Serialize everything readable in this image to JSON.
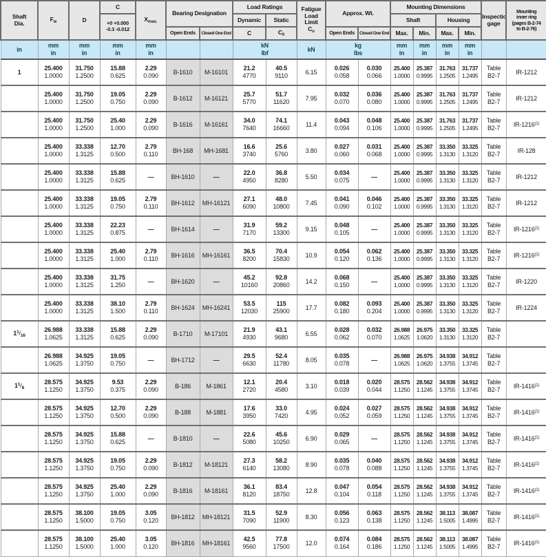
{
  "header": {
    "shaft_dia": "Shaft\nDia.",
    "f": "F",
    "f_sub": "w",
    "d": "D",
    "c": "C",
    "c_tolerance": "+0 +0.000\n-0.3 -0.012",
    "x": "X",
    "x_sub": "max.",
    "bearing_designation": "Bearing Designation",
    "open_ends": "Open Ends",
    "closed_one_end": "Closed One End",
    "load_ratings": "Load Ratings",
    "dynamic": "Dynamic",
    "static": "Static",
    "c_dynamic": "C",
    "c_static": "C",
    "c_static_sub": "0",
    "fatigue": "Fatigue\nLoad\nLimit",
    "fatigue_c": "C",
    "fatigue_c_sub": "u",
    "approx_wt": "Approx. Wt.",
    "mounting_dimensions": "Mounting Dimensions",
    "shaft": "Shaft",
    "housing": "Housing",
    "max": "Max.",
    "min": "Min.",
    "inspection_gage": "Inspection\ngage",
    "mounting_inner_ring": "Mounting\ninner ring\n(pages B-2-74\nto B-2-76)"
  },
  "units": {
    "shaft": "in",
    "metric": "mm\nin",
    "load": "kN\nlbf",
    "fatigue": "kN",
    "weight": "kg\nlbs"
  },
  "colors": {
    "header_bg": "#e7e7e7",
    "units_bg": "#c9e8f7",
    "designation_bg": "#dcdcdc",
    "row_separator": "#707070",
    "grid_line": "#a8a8a8"
  },
  "rows": [
    {
      "shaft": "1",
      "fw": [
        "25.400",
        "1.0000"
      ],
      "d": [
        "31.750",
        "1.2500"
      ],
      "c": [
        "15.88",
        "0.625"
      ],
      "x": [
        "2.29",
        "0.090"
      ],
      "open": "B-1610",
      "closed": "M-16101",
      "dyn": [
        "21.2",
        "4770"
      ],
      "stat": [
        "40.5",
        "9110"
      ],
      "cu": "6.15",
      "wto": [
        "0.026",
        "0.058"
      ],
      "wtc": [
        "0.030",
        "0.066"
      ],
      "smax": [
        "25.400",
        "1.0000"
      ],
      "smin": [
        "25.387",
        "0.9995"
      ],
      "hmax": [
        "31.763",
        "1.2505"
      ],
      "hmin": [
        "31.737",
        "1.2495"
      ],
      "gage": [
        "Table",
        "B2-7"
      ],
      "ring": "IR-1212"
    },
    {
      "shaft": "",
      "fw": [
        "25.400",
        "1.0000"
      ],
      "d": [
        "31.750",
        "1.2500"
      ],
      "c": [
        "19.05",
        "0.750"
      ],
      "x": [
        "2.29",
        "0.090"
      ],
      "open": "B-1612",
      "closed": "M-16121",
      "dyn": [
        "25.7",
        "5770"
      ],
      "stat": [
        "51.7",
        "11620"
      ],
      "cu": "7.95",
      "wto": [
        "0.032",
        "0.070"
      ],
      "wtc": [
        "0.036",
        "0.080"
      ],
      "smax": [
        "25.400",
        "1.0000"
      ],
      "smin": [
        "25.387",
        "0.9995"
      ],
      "hmax": [
        "31.763",
        "1.2505"
      ],
      "hmin": [
        "31.737",
        "1.2495"
      ],
      "gage": [
        "Table",
        "B2-7"
      ],
      "ring": "IR-1212"
    },
    {
      "shaft": "",
      "fw": [
        "25.400",
        "1.0000"
      ],
      "d": [
        "31.750",
        "1.2500"
      ],
      "c": [
        "25.40",
        "1.000"
      ],
      "x": [
        "2.29",
        "0.090"
      ],
      "open": "B-1616",
      "closed": "M-16161",
      "dyn": [
        "34.0",
        "7640"
      ],
      "stat": [
        "74.1",
        "16660"
      ],
      "cu": "11.4",
      "wto": [
        "0.043",
        "0.094"
      ],
      "wtc": [
        "0.048",
        "0.106"
      ],
      "smax": [
        "25.400",
        "1.0000"
      ],
      "smin": [
        "25.387",
        "0.9995"
      ],
      "hmax": [
        "31.763",
        "1.2505"
      ],
      "hmin": [
        "31.737",
        "1.2495"
      ],
      "gage": [
        "Table",
        "B2-7"
      ],
      "ring": "IR-1216(1)"
    },
    {
      "shaft": "",
      "fw": [
        "25.400",
        "1.0000"
      ],
      "d": [
        "33.338",
        "1.3125"
      ],
      "c": [
        "12.70",
        "0.500"
      ],
      "x": [
        "2.79",
        "0.110"
      ],
      "open": "BH-168",
      "closed": "MH-1681",
      "dyn": [
        "16.6",
        "3740"
      ],
      "stat": [
        "25.6",
        "5760"
      ],
      "cu": "3.80",
      "wto": [
        "0.027",
        "0.060"
      ],
      "wtc": [
        "0.031",
        "0.068"
      ],
      "smax": [
        "25.400",
        "1.0000"
      ],
      "smin": [
        "25.387",
        "0.9995"
      ],
      "hmax": [
        "33.350",
        "1.3130"
      ],
      "hmin": [
        "33.325",
        "1.3120"
      ],
      "gage": [
        "Table",
        "B2-7"
      ],
      "ring": "IR-128"
    },
    {
      "shaft": "",
      "fw": [
        "25.400",
        "1.0000"
      ],
      "d": [
        "33.338",
        "1.3125"
      ],
      "c": [
        "15.88",
        "0.625"
      ],
      "x": "—",
      "open": "BH-1610",
      "closed": "—",
      "dyn": [
        "22.0",
        "4950"
      ],
      "stat": [
        "36.8",
        "8280"
      ],
      "cu": "5.50",
      "wto": [
        "0.034",
        "0.075"
      ],
      "wtc": "—",
      "smax": [
        "25.400",
        "1.0000"
      ],
      "smin": [
        "25.387",
        "0.9995"
      ],
      "hmax": [
        "33.350",
        "1.3130"
      ],
      "hmin": [
        "33.325",
        "1.3120"
      ],
      "gage": [
        "Table",
        "B2-7"
      ],
      "ring": "IR-1212"
    },
    {
      "shaft": "",
      "fw": [
        "25.400",
        "1.0000"
      ],
      "d": [
        "33.338",
        "1.3125"
      ],
      "c": [
        "19.05",
        "0.750"
      ],
      "x": [
        "2.79",
        "0.110"
      ],
      "open": "BH-1612",
      "closed": "MH-16121",
      "dyn": [
        "27.1",
        "6090"
      ],
      "stat": [
        "48.0",
        "10800"
      ],
      "cu": "7.45",
      "wto": [
        "0.041",
        "0.090"
      ],
      "wtc": [
        "0.046",
        "0.102"
      ],
      "smax": [
        "25.400",
        "1.0000"
      ],
      "smin": [
        "25.387",
        "0.9995"
      ],
      "hmax": [
        "33.350",
        "1.3130"
      ],
      "hmin": [
        "33.325",
        "1.3120"
      ],
      "gage": [
        "Table",
        "B2-7"
      ],
      "ring": "IR-1212"
    },
    {
      "shaft": "",
      "fw": [
        "25.400",
        "1.0000"
      ],
      "d": [
        "33.338",
        "1.3125"
      ],
      "c": [
        "22.23",
        "0.875"
      ],
      "x": "—",
      "open": "BH-1614",
      "closed": "—",
      "dyn": [
        "31.9",
        "7170"
      ],
      "stat": [
        "59.2",
        "13300"
      ],
      "cu": "9.15",
      "wto": [
        "0.048",
        "0.105"
      ],
      "wtc": "—",
      "smax": [
        "25.400",
        "1.0000"
      ],
      "smin": [
        "25.387",
        "0.9995"
      ],
      "hmax": [
        "33.350",
        "1.3130"
      ],
      "hmin": [
        "33.325",
        "1.3120"
      ],
      "gage": [
        "Table",
        "B2-7"
      ],
      "ring": "IR-1216(1)"
    },
    {
      "shaft": "",
      "fw": [
        "25.400",
        "1.0000"
      ],
      "d": [
        "33.338",
        "1.3125"
      ],
      "c": [
        "25.40",
        "1.000"
      ],
      "x": [
        "2.79",
        "0.110"
      ],
      "open": "BH-1616",
      "closed": "MH-16161",
      "dyn": [
        "36.5",
        "8200"
      ],
      "stat": [
        "70.4",
        "15830"
      ],
      "cu": "10.9",
      "wto": [
        "0.054",
        "0.120"
      ],
      "wtc": [
        "0.062",
        "0.136"
      ],
      "smax": [
        "25.400",
        "1.0000"
      ],
      "smin": [
        "25.387",
        "0.9995"
      ],
      "hmax": [
        "33.350",
        "1.3130"
      ],
      "hmin": [
        "33.325",
        "1.3120"
      ],
      "gage": [
        "Table",
        "B2-7"
      ],
      "ring": "IR-1216(1)"
    },
    {
      "shaft": "",
      "fw": [
        "25.400",
        "1.0000"
      ],
      "d": [
        "33.338",
        "1.3125"
      ],
      "c": [
        "31.75",
        "1.250"
      ],
      "x": "—",
      "open": "BH-1620",
      "closed": "—",
      "dyn": [
        "45.2",
        "10160"
      ],
      "stat": [
        "92.8",
        "20860"
      ],
      "cu": "14.2",
      "wto": [
        "0.068",
        "0.150"
      ],
      "wtc": "—",
      "smax": [
        "25.400",
        "1.0000"
      ],
      "smin": [
        "25.387",
        "0.9995"
      ],
      "hmax": [
        "33.350",
        "1.3130"
      ],
      "hmin": [
        "33.325",
        "1.3120"
      ],
      "gage": [
        "Table",
        "B2-7"
      ],
      "ring": "IR-1220"
    },
    {
      "shaft": "",
      "fw": [
        "25.400",
        "1.0000"
      ],
      "d": [
        "33.338",
        "1.3125"
      ],
      "c": [
        "38.10",
        "1.500"
      ],
      "x": [
        "2.79",
        "0.110"
      ],
      "open": "BH-1624",
      "closed": "MH-16241",
      "dyn": [
        "53.5",
        "12030"
      ],
      "stat": [
        "115",
        "25900"
      ],
      "cu": "17.7",
      "wto": [
        "0.082",
        "0.180"
      ],
      "wtc": [
        "0.093",
        "0.204"
      ],
      "smax": [
        "25.400",
        "1.0000"
      ],
      "smin": [
        "25.387",
        "0.9995"
      ],
      "hmax": [
        "33.350",
        "1.3130"
      ],
      "hmin": [
        "33.325",
        "1.3120"
      ],
      "gage": [
        "Table",
        "B2-7"
      ],
      "ring": "IR-1224"
    },
    {
      "shaft": "1 1/16",
      "fw": [
        "26.988",
        "1.0625"
      ],
      "d": [
        "33.338",
        "1.3125"
      ],
      "c": [
        "15.88",
        "0.625"
      ],
      "x": [
        "2.29",
        "0.090"
      ],
      "open": "B-1710",
      "closed": "M-17101",
      "dyn": [
        "21.9",
        "4930"
      ],
      "stat": [
        "43.1",
        "9680"
      ],
      "cu": "6.55",
      "wto": [
        "0.028",
        "0.062"
      ],
      "wtc": [
        "0.032",
        "0.070"
      ],
      "smax": [
        "26.988",
        "1.0625"
      ],
      "smin": [
        "26.975",
        "1.0620"
      ],
      "hmax": [
        "33.350",
        "1.3130"
      ],
      "hmin": [
        "33.325",
        "1.3120"
      ],
      "gage": [
        "Table",
        "B2-7"
      ],
      "ring": ""
    },
    {
      "shaft": "",
      "fw": [
        "26.988",
        "1.0625"
      ],
      "d": [
        "34.925",
        "1.3750"
      ],
      "c": [
        "19.05",
        "0.750"
      ],
      "x": "—",
      "open": "BH-1712",
      "closed": "—",
      "dyn": [
        "29.5",
        "6630"
      ],
      "stat": [
        "52.4",
        "11780"
      ],
      "cu": "8.05",
      "wto": [
        "0.035",
        "0.078"
      ],
      "wtc": "—",
      "smax": [
        "26.988",
        "1.0625"
      ],
      "smin": [
        "26.975",
        "1.0620"
      ],
      "hmax": [
        "34.938",
        "1.3755"
      ],
      "hmin": [
        "34.912",
        "1.3745"
      ],
      "gage": [
        "Table",
        "B2-7"
      ],
      "ring": ""
    },
    {
      "shaft": "1 1/8",
      "fw": [
        "28.575",
        "1.1250"
      ],
      "d": [
        "34.925",
        "1.3750"
      ],
      "c": [
        "9.53",
        "0.375"
      ],
      "x": [
        "2.29",
        "0.090"
      ],
      "open": "B-186",
      "closed": "M-1861",
      "dyn": [
        "12.1",
        "2720"
      ],
      "stat": [
        "20.4",
        "4580"
      ],
      "cu": "3.10",
      "wto": [
        "0.018",
        "0.039"
      ],
      "wtc": [
        "0.020",
        "0.044"
      ],
      "smax": [
        "28.575",
        "1.1250"
      ],
      "smin": [
        "28.562",
        "1.1245"
      ],
      "hmax": [
        "34.938",
        "1.3755"
      ],
      "hmin": [
        "34.912",
        "1.3745"
      ],
      "gage": [
        "Table",
        "B2-7"
      ],
      "ring": "IR-1416(1)"
    },
    {
      "shaft": "",
      "fw": [
        "28.575",
        "1.1250"
      ],
      "d": [
        "34.925",
        "1.3750"
      ],
      "c": [
        "12.70",
        "0.500"
      ],
      "x": [
        "2.29",
        "0.090"
      ],
      "open": "B-188",
      "closed": "M-1881",
      "dyn": [
        "17.6",
        "3950"
      ],
      "stat": [
        "33.0",
        "7420"
      ],
      "cu": "4.95",
      "wto": [
        "0.024",
        "0.052"
      ],
      "wtc": [
        "0.027",
        "0.059"
      ],
      "smax": [
        "28.575",
        "1.1250"
      ],
      "smin": [
        "28.562",
        "1.1245"
      ],
      "hmax": [
        "34.938",
        "1.3755"
      ],
      "hmin": [
        "34.912",
        "1.3745"
      ],
      "gage": [
        "Table",
        "B2-7"
      ],
      "ring": "IR-1416(1)"
    },
    {
      "shaft": "",
      "fw": [
        "28.575",
        "1.1250"
      ],
      "d": [
        "34.925",
        "1.3750"
      ],
      "c": [
        "15.88",
        "0.625"
      ],
      "x": "—",
      "open": "B-1810",
      "closed": "—",
      "dyn": [
        "22.6",
        "5080"
      ],
      "stat": [
        "45.6",
        "10250"
      ],
      "cu": "6.90",
      "wto": [
        "0.029",
        "0.065"
      ],
      "wtc": "—",
      "smax": [
        "28.575",
        "1.1250"
      ],
      "smin": [
        "28.562",
        "1.1245"
      ],
      "hmax": [
        "34.938",
        "1.3755"
      ],
      "hmin": [
        "34.912",
        "1.3745"
      ],
      "gage": [
        "Table",
        "B2-7"
      ],
      "ring": "IR-1416(1)"
    },
    {
      "shaft": "",
      "fw": [
        "28.575",
        "1.1250"
      ],
      "d": [
        "34.925",
        "1.3750"
      ],
      "c": [
        "19.05",
        "0.750"
      ],
      "x": [
        "2.29",
        "0.090"
      ],
      "open": "B-1812",
      "closed": "M-18121",
      "dyn": [
        "27.3",
        "6140"
      ],
      "stat": [
        "58.2",
        "13080"
      ],
      "cu": "8.90",
      "wto": [
        "0.035",
        "0.078"
      ],
      "wtc": [
        "0.040",
        "0.088"
      ],
      "smax": [
        "28.575",
        "1.1250"
      ],
      "smin": [
        "28.562",
        "1.1245"
      ],
      "hmax": [
        "34.938",
        "1.3755"
      ],
      "hmin": [
        "34.912",
        "1.3745"
      ],
      "gage": [
        "Table",
        "B2-7"
      ],
      "ring": "IR-1416(1)"
    },
    {
      "shaft": "",
      "fw": [
        "28.575",
        "1.1250"
      ],
      "d": [
        "34.925",
        "1.3750"
      ],
      "c": [
        "25.40",
        "1.000"
      ],
      "x": [
        "2.29",
        "0.090"
      ],
      "open": "B-1816",
      "closed": "M-18161",
      "dyn": [
        "36.1",
        "8120"
      ],
      "stat": [
        "83.4",
        "18750"
      ],
      "cu": "12.8",
      "wto": [
        "0.047",
        "0.104"
      ],
      "wtc": [
        "0.054",
        "0.118"
      ],
      "smax": [
        "28.575",
        "1.1250"
      ],
      "smin": [
        "28.562",
        "1.1245"
      ],
      "hmax": [
        "34.938",
        "1.3755"
      ],
      "hmin": [
        "34.912",
        "1.3745"
      ],
      "gage": [
        "Table",
        "B2-7"
      ],
      "ring": "IR-1416(1)"
    },
    {
      "shaft": "",
      "fw": [
        "28.575",
        "1.1250"
      ],
      "d": [
        "38.100",
        "1.5000"
      ],
      "c": [
        "19.05",
        "0.750"
      ],
      "x": [
        "3.05",
        "0.120"
      ],
      "open": "BH-1812",
      "closed": "MH-18121",
      "dyn": [
        "31.5",
        "7090"
      ],
      "stat": [
        "52.9",
        "11900"
      ],
      "cu": "8.30",
      "wto": [
        "0.056",
        "0.123"
      ],
      "wtc": [
        "0.063",
        "0.138"
      ],
      "smax": [
        "28.575",
        "1.1250"
      ],
      "smin": [
        "28.562",
        "1.1245"
      ],
      "hmax": [
        "38.113",
        "1.5005"
      ],
      "hmin": [
        "38.087",
        "1.4995"
      ],
      "gage": [
        "Table",
        "B2-7"
      ],
      "ring": "IR-1416(1)"
    },
    {
      "shaft": "",
      "fw": [
        "28.575",
        "1.1250"
      ],
      "d": [
        "38.100",
        "1.5000"
      ],
      "c": [
        "25.40",
        "1.000"
      ],
      "x": [
        "3.05",
        "0.120"
      ],
      "open": "BH-1816",
      "closed": "MH-18161",
      "dyn": [
        "42.5",
        "9560"
      ],
      "stat": [
        "77.8",
        "17500"
      ],
      "cu": "12.0",
      "wto": [
        "0.074",
        "0.164"
      ],
      "wtc": [
        "0.084",
        "0.186"
      ],
      "smax": [
        "28.575",
        "1.1250"
      ],
      "smin": [
        "28.562",
        "1.1245"
      ],
      "hmax": [
        "38.113",
        "1.5005"
      ],
      "hmin": [
        "38.087",
        "1.4995"
      ],
      "gage": [
        "Table",
        "B2-7"
      ],
      "ring": "IR-1416(1)"
    }
  ]
}
